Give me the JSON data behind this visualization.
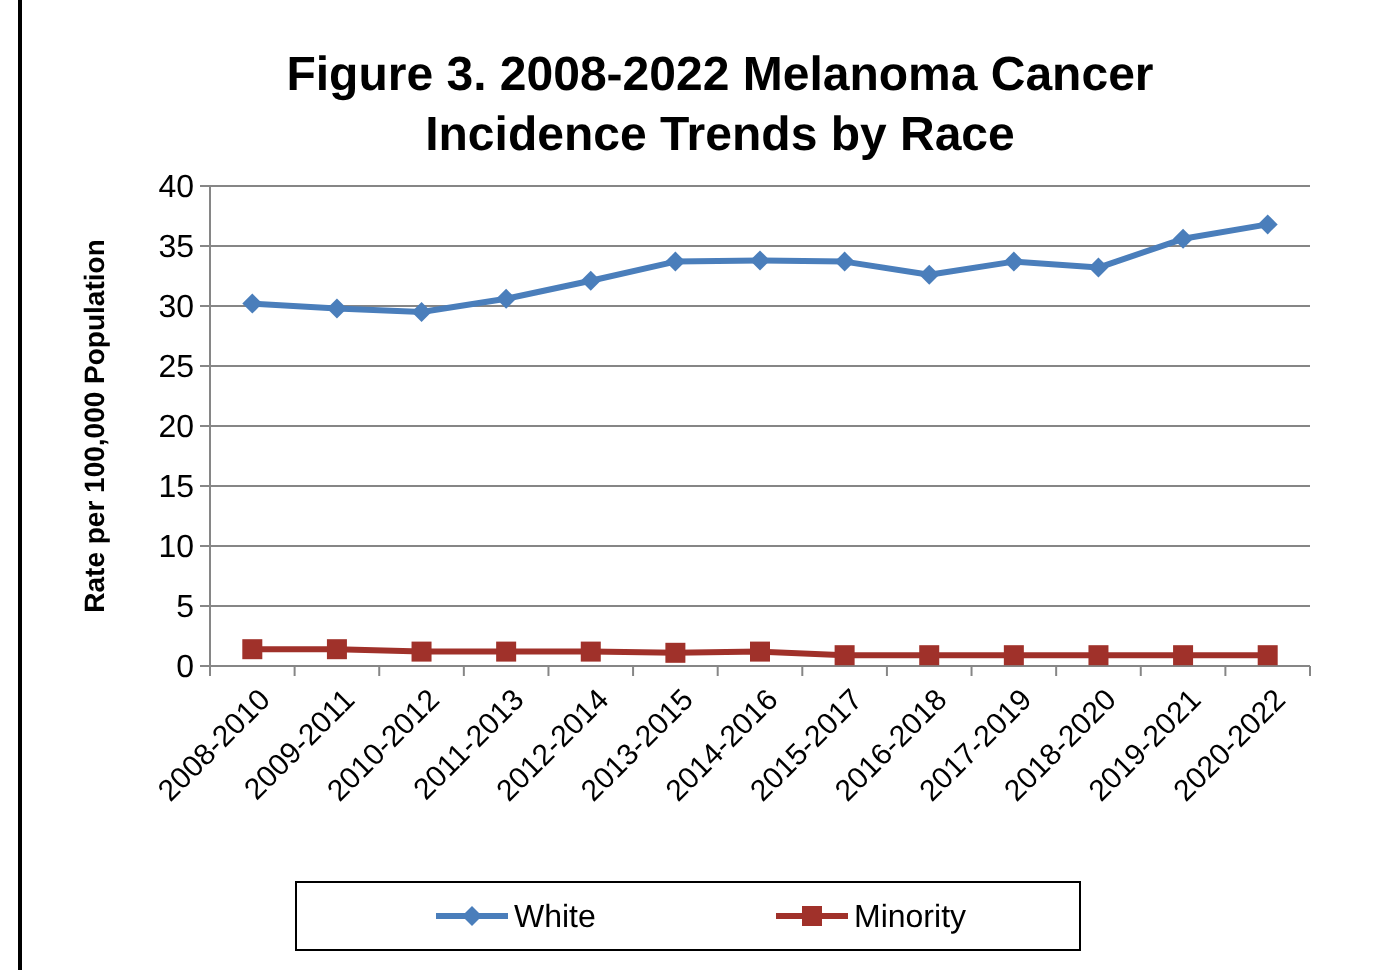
{
  "chart_data": {
    "type": "line",
    "title": "Figure 3. 2008-2022 Melanoma Cancer Incidence Trends by Race",
    "ylabel": "Rate per 100,000 Population",
    "categories": [
      "2008-2010",
      "2009-2011",
      "2010-2012",
      "2011-2013",
      "2012-2014",
      "2013-2015",
      "2014-2016",
      "2015-2017",
      "2016-2018",
      "2017-2019",
      "2018-2020",
      "2019-2021",
      "2020-2022"
    ],
    "series": [
      {
        "name": "White",
        "color": "#4a7ebb",
        "marker": "diamond",
        "values": [
          30.2,
          29.8,
          29.5,
          30.6,
          32.1,
          33.7,
          33.8,
          33.7,
          32.6,
          33.7,
          33.2,
          35.6,
          36.8
        ]
      },
      {
        "name": "Minority",
        "color": "#a0312a",
        "marker": "square",
        "values": [
          1.4,
          1.4,
          1.2,
          1.2,
          1.2,
          1.1,
          1.2,
          0.9,
          0.9,
          0.9,
          0.9,
          0.9,
          0.9
        ]
      }
    ],
    "ylim": [
      0,
      40
    ],
    "yticks": [
      0,
      5,
      10,
      15,
      20,
      25,
      30,
      35,
      40
    ],
    "grid": "y",
    "legend": "bottom"
  }
}
